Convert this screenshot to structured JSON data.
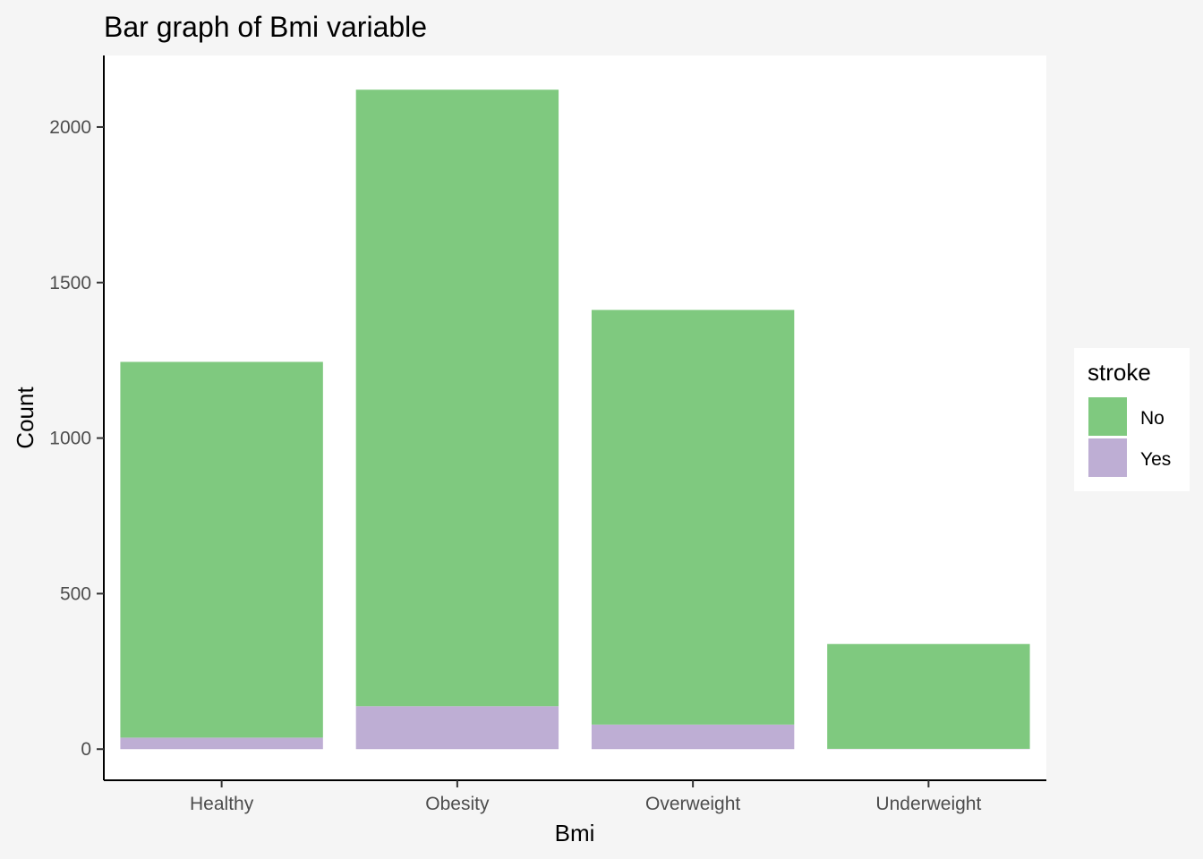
{
  "chart_data": {
    "type": "bar",
    "stacked": true,
    "title": "Bar graph of Bmi variable",
    "xlabel": "Bmi",
    "ylabel": "Count",
    "categories": [
      "Healthy",
      "Obesity",
      "Overweight",
      "Underweight"
    ],
    "series": [
      {
        "name": "No",
        "color": "#7fc97f",
        "values": [
          1208,
          1982,
          1333,
          337
        ]
      },
      {
        "name": "Yes",
        "color": "#beaed4",
        "values": [
          37,
          138,
          79,
          1
        ]
      }
    ],
    "ylim": [
      -100,
      2230
    ],
    "yticks": [
      0,
      500,
      1000,
      1500,
      2000
    ],
    "ytick_labels": [
      "0",
      "500",
      "1000",
      "1500",
      "2000"
    ],
    "grid": false,
    "legend": {
      "title": "stroke",
      "placement": "right",
      "entries": [
        "No",
        "Yes"
      ]
    }
  }
}
